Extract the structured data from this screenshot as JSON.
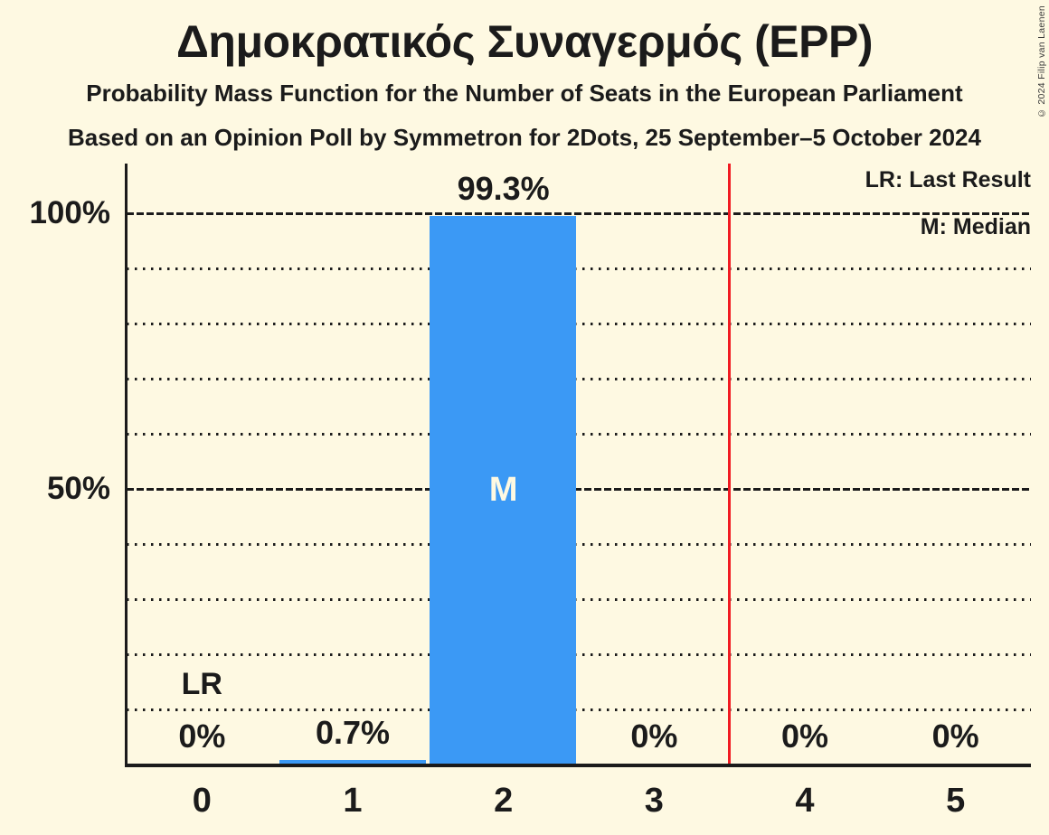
{
  "header": {
    "title": "Δημοκρατικός Συναγερμός (EPP)",
    "subtitle1": "Probability Mass Function for the Number of Seats in the European Parliament",
    "subtitle2": "Based on an Opinion Poll by Symmetron for 2Dots, 25 September–5 October 2024"
  },
  "copyright": "© 2024 Filip van Laenen",
  "legend": {
    "lr": "LR: Last Result",
    "m": "M: Median"
  },
  "chart_data": {
    "type": "bar",
    "title": "Δημοκρατικός Συναγερμός (EPP)",
    "categories": [
      "0",
      "1",
      "2",
      "3",
      "4",
      "5"
    ],
    "values": [
      0,
      0.7,
      99.3,
      0,
      0,
      0
    ],
    "bar_labels": [
      "0%",
      "0.7%",
      "99.3%",
      "0%",
      "0%",
      "0%"
    ],
    "yticks": [
      {
        "value": 50,
        "label": "50%"
      },
      {
        "value": 100,
        "label": "100%"
      }
    ],
    "major_gridlines": [
      50,
      100
    ],
    "minor_gridlines": [
      10,
      20,
      30,
      40,
      60,
      70,
      80,
      90
    ],
    "ylim": [
      0,
      108.8
    ],
    "grid": true,
    "legend_position": "top-right",
    "median_category_index": 2,
    "median_marker": "M",
    "last_result_category_index": 0,
    "last_result_marker": "LR",
    "red_line_x": 3.5
  },
  "colors": {
    "background": "#FEF9E2",
    "text": "#1B1B1B",
    "bar_blue": "#3B99F5",
    "line_red": "#F11B22",
    "label_on_bar": "#FEF9E2"
  }
}
